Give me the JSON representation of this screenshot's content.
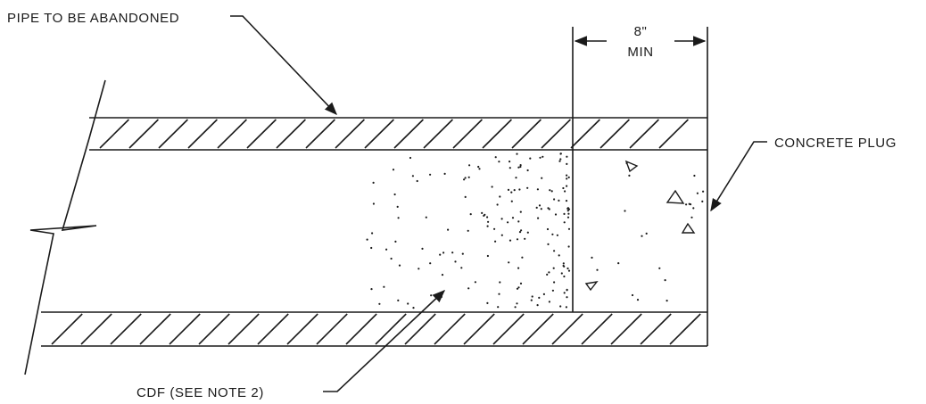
{
  "labels": {
    "pipe_to_be_abandoned": "PIPE TO BE ABANDONED",
    "dimension_value": "8\"",
    "dimension_qualifier": "MIN",
    "concrete_plug": "CONCRETE PLUG",
    "cdf_note": "CDF (SEE NOTE 2)"
  },
  "colors": {
    "linework": "#1a1a1a",
    "background": "#ffffff"
  }
}
